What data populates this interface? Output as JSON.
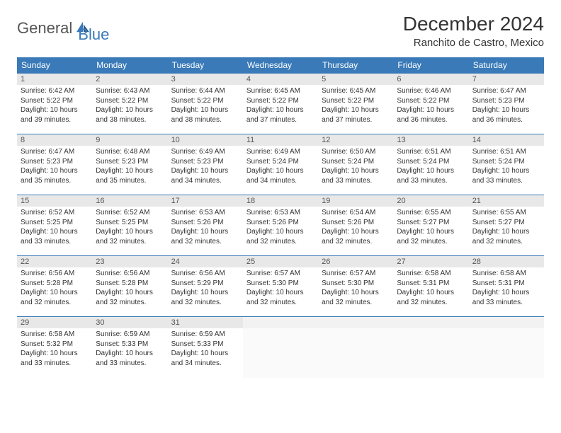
{
  "logo": {
    "text1": "General",
    "text2": "Blue",
    "accent_color": "#3a7ab8"
  },
  "title": "December 2024",
  "location": "Ranchito de Castro, Mexico",
  "header_bg": "#3a7ab8",
  "header_fg": "#ffffff",
  "row_border": "#3a7ab8",
  "daynum_bg": "#e8e8e8",
  "weekdays": [
    "Sunday",
    "Monday",
    "Tuesday",
    "Wednesday",
    "Thursday",
    "Friday",
    "Saturday"
  ],
  "weeks": [
    [
      {
        "n": "1",
        "sr": "6:42 AM",
        "ss": "5:22 PM",
        "dl": "10 hours and 39 minutes."
      },
      {
        "n": "2",
        "sr": "6:43 AM",
        "ss": "5:22 PM",
        "dl": "10 hours and 38 minutes."
      },
      {
        "n": "3",
        "sr": "6:44 AM",
        "ss": "5:22 PM",
        "dl": "10 hours and 38 minutes."
      },
      {
        "n": "4",
        "sr": "6:45 AM",
        "ss": "5:22 PM",
        "dl": "10 hours and 37 minutes."
      },
      {
        "n": "5",
        "sr": "6:45 AM",
        "ss": "5:22 PM",
        "dl": "10 hours and 37 minutes."
      },
      {
        "n": "6",
        "sr": "6:46 AM",
        "ss": "5:22 PM",
        "dl": "10 hours and 36 minutes."
      },
      {
        "n": "7",
        "sr": "6:47 AM",
        "ss": "5:23 PM",
        "dl": "10 hours and 36 minutes."
      }
    ],
    [
      {
        "n": "8",
        "sr": "6:47 AM",
        "ss": "5:23 PM",
        "dl": "10 hours and 35 minutes."
      },
      {
        "n": "9",
        "sr": "6:48 AM",
        "ss": "5:23 PM",
        "dl": "10 hours and 35 minutes."
      },
      {
        "n": "10",
        "sr": "6:49 AM",
        "ss": "5:23 PM",
        "dl": "10 hours and 34 minutes."
      },
      {
        "n": "11",
        "sr": "6:49 AM",
        "ss": "5:24 PM",
        "dl": "10 hours and 34 minutes."
      },
      {
        "n": "12",
        "sr": "6:50 AM",
        "ss": "5:24 PM",
        "dl": "10 hours and 33 minutes."
      },
      {
        "n": "13",
        "sr": "6:51 AM",
        "ss": "5:24 PM",
        "dl": "10 hours and 33 minutes."
      },
      {
        "n": "14",
        "sr": "6:51 AM",
        "ss": "5:24 PM",
        "dl": "10 hours and 33 minutes."
      }
    ],
    [
      {
        "n": "15",
        "sr": "6:52 AM",
        "ss": "5:25 PM",
        "dl": "10 hours and 33 minutes."
      },
      {
        "n": "16",
        "sr": "6:52 AM",
        "ss": "5:25 PM",
        "dl": "10 hours and 32 minutes."
      },
      {
        "n": "17",
        "sr": "6:53 AM",
        "ss": "5:26 PM",
        "dl": "10 hours and 32 minutes."
      },
      {
        "n": "18",
        "sr": "6:53 AM",
        "ss": "5:26 PM",
        "dl": "10 hours and 32 minutes."
      },
      {
        "n": "19",
        "sr": "6:54 AM",
        "ss": "5:26 PM",
        "dl": "10 hours and 32 minutes."
      },
      {
        "n": "20",
        "sr": "6:55 AM",
        "ss": "5:27 PM",
        "dl": "10 hours and 32 minutes."
      },
      {
        "n": "21",
        "sr": "6:55 AM",
        "ss": "5:27 PM",
        "dl": "10 hours and 32 minutes."
      }
    ],
    [
      {
        "n": "22",
        "sr": "6:56 AM",
        "ss": "5:28 PM",
        "dl": "10 hours and 32 minutes."
      },
      {
        "n": "23",
        "sr": "6:56 AM",
        "ss": "5:28 PM",
        "dl": "10 hours and 32 minutes."
      },
      {
        "n": "24",
        "sr": "6:56 AM",
        "ss": "5:29 PM",
        "dl": "10 hours and 32 minutes."
      },
      {
        "n": "25",
        "sr": "6:57 AM",
        "ss": "5:30 PM",
        "dl": "10 hours and 32 minutes."
      },
      {
        "n": "26",
        "sr": "6:57 AM",
        "ss": "5:30 PM",
        "dl": "10 hours and 32 minutes."
      },
      {
        "n": "27",
        "sr": "6:58 AM",
        "ss": "5:31 PM",
        "dl": "10 hours and 32 minutes."
      },
      {
        "n": "28",
        "sr": "6:58 AM",
        "ss": "5:31 PM",
        "dl": "10 hours and 33 minutes."
      }
    ],
    [
      {
        "n": "29",
        "sr": "6:58 AM",
        "ss": "5:32 PM",
        "dl": "10 hours and 33 minutes."
      },
      {
        "n": "30",
        "sr": "6:59 AM",
        "ss": "5:33 PM",
        "dl": "10 hours and 33 minutes."
      },
      {
        "n": "31",
        "sr": "6:59 AM",
        "ss": "5:33 PM",
        "dl": "10 hours and 34 minutes."
      },
      null,
      null,
      null,
      null
    ]
  ],
  "labels": {
    "sunrise": "Sunrise:",
    "sunset": "Sunset:",
    "daylight": "Daylight:"
  }
}
